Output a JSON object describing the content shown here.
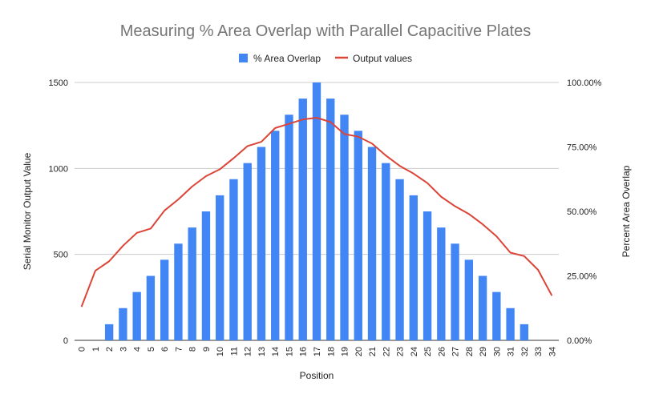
{
  "chart_data": {
    "type": "bar",
    "title": "Measuring % Area Overlap with Parallel Capacitive Plates",
    "xlabel": "Position",
    "ylabel_left": "Serial Monitor Output Value",
    "ylabel_right": "Percent Area Overlap",
    "ylim_left": [
      0,
      1500
    ],
    "ylim_right": [
      0,
      1
    ],
    "yticks_left": [
      "0",
      "500",
      "1000",
      "1500"
    ],
    "yticks_right": [
      "0.00%",
      "25.00%",
      "50.00%",
      "75.00%",
      "100.00%"
    ],
    "grid": true,
    "legend_position": "top",
    "categories": [
      "0",
      "1",
      "2",
      "3",
      "4",
      "5",
      "6",
      "7",
      "8",
      "9",
      "10",
      "11",
      "12",
      "13",
      "14",
      "15",
      "16",
      "17",
      "18",
      "19",
      "20",
      "21",
      "22",
      "23",
      "24",
      "25",
      "26",
      "27",
      "28",
      "29",
      "30",
      "31",
      "32",
      "33",
      "34"
    ],
    "series": [
      {
        "name": "% Area Overlap",
        "type": "bar",
        "axis": "right",
        "color": "#4285f4",
        "values": [
          0,
          0,
          0.0625,
          0.125,
          0.1875,
          0.25,
          0.3125,
          0.375,
          0.4375,
          0.5,
          0.5625,
          0.625,
          0.6875,
          0.75,
          0.8125,
          0.875,
          0.9375,
          1.0,
          0.9375,
          0.875,
          0.8125,
          0.75,
          0.6875,
          0.625,
          0.5625,
          0.5,
          0.4375,
          0.375,
          0.3125,
          0.25,
          0.1875,
          0.125,
          0.0625,
          0,
          0
        ]
      },
      {
        "name": "Output values",
        "type": "line",
        "axis": "left",
        "color": "#db4437",
        "values": [
          195,
          405,
          460,
          550,
          625,
          650,
          755,
          820,
          895,
          955,
          995,
          1060,
          1130,
          1155,
          1235,
          1260,
          1285,
          1295,
          1270,
          1200,
          1185,
          1145,
          1075,
          1015,
          970,
          915,
          835,
          780,
          735,
          675,
          605,
          510,
          490,
          410,
          260
        ]
      }
    ]
  }
}
